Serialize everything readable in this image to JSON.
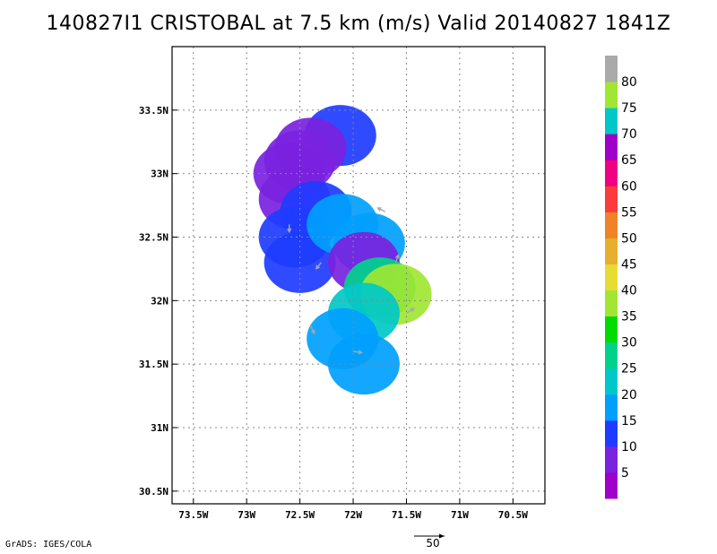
{
  "title": "140827I1  CRISTOBAL  at  7.5  km  (m/s)  Valid  20140827  1841Z",
  "credit": "GrADS: IGES/COLA",
  "chart_data": {
    "type": "heatmap",
    "title": "140827I1  CRISTOBAL  at  7.5  km  (m/s)  Valid  20140827  1841Z",
    "units": "m/s",
    "xlim": [
      -73.7,
      -70.2
    ],
    "ylim": [
      30.4,
      34.0
    ],
    "x_ticks": [
      -73.5,
      -73,
      -72.5,
      -72,
      -71.5,
      -71,
      -70.5
    ],
    "x_tick_labels": [
      "73.5W",
      "73W",
      "72.5W",
      "72W",
      "71.5W",
      "71W",
      "70.5W"
    ],
    "y_ticks": [
      30.5,
      31,
      31.5,
      32,
      32.5,
      33,
      33.5
    ],
    "y_tick_labels": [
      "30.5N",
      "31N",
      "31.5N",
      "32N",
      "32.5N",
      "33N",
      "33.5N"
    ],
    "grid": true,
    "colorbar": {
      "labels": [
        "5",
        "10",
        "15",
        "20",
        "25",
        "30",
        "35",
        "40",
        "45",
        "50",
        "55",
        "60",
        "65",
        "70",
        "75",
        "80"
      ],
      "colors": [
        "#a000c8",
        "#7a22e0",
        "#1e3cff",
        "#00a0ff",
        "#00c8c8",
        "#00d28c",
        "#00dc00",
        "#a0e632",
        "#e6dc32",
        "#e6af2d",
        "#f08228",
        "#fa3c3c",
        "#f00082",
        "#a000c8",
        "#00c8c8",
        "#a0e632",
        "#aaaaaa"
      ]
    },
    "reference_vector": {
      "magnitude": 50,
      "label": "50"
    },
    "cells": [
      {
        "lat": 33.3,
        "lon": -72.12,
        "value": 12
      },
      {
        "lat": 33.2,
        "lon": -72.4,
        "value": 5
      },
      {
        "lat": 33.1,
        "lon": -72.5,
        "value": 6
      },
      {
        "lat": 33.0,
        "lon": -72.6,
        "value": 5
      },
      {
        "lat": 32.8,
        "lon": -72.55,
        "value": 6
      },
      {
        "lat": 32.7,
        "lon": -72.35,
        "value": 10
      },
      {
        "lat": 32.5,
        "lon": -72.55,
        "value": 10
      },
      {
        "lat": 32.3,
        "lon": -72.5,
        "value": 11
      },
      {
        "lat": 32.6,
        "lon": -72.1,
        "value": 17
      },
      {
        "lat": 32.45,
        "lon": -71.85,
        "value": 18
      },
      {
        "lat": 32.3,
        "lon": -71.9,
        "value": 5
      },
      {
        "lat": 32.1,
        "lon": -71.75,
        "value": 27
      },
      {
        "lat": 32.05,
        "lon": -71.6,
        "value": 38
      },
      {
        "lat": 31.9,
        "lon": -71.9,
        "value": 22
      },
      {
        "lat": 31.7,
        "lon": -72.1,
        "value": 16
      },
      {
        "lat": 31.5,
        "lon": -71.9,
        "value": 18
      }
    ],
    "vectors": [
      {
        "lat": 32.6,
        "lon": -72.6,
        "u": 0,
        "v": -12
      },
      {
        "lat": 32.3,
        "lon": -72.3,
        "u": -8,
        "v": -10
      },
      {
        "lat": 32.7,
        "lon": -71.7,
        "u": -12,
        "v": 6
      },
      {
        "lat": 32.3,
        "lon": -71.6,
        "u": 4,
        "v": 12
      },
      {
        "lat": 31.9,
        "lon": -71.5,
        "u": 12,
        "v": 8
      },
      {
        "lat": 31.6,
        "lon": -72.0,
        "u": 14,
        "v": -2
      },
      {
        "lat": 31.8,
        "lon": -72.4,
        "u": 6,
        "v": -12
      }
    ]
  }
}
